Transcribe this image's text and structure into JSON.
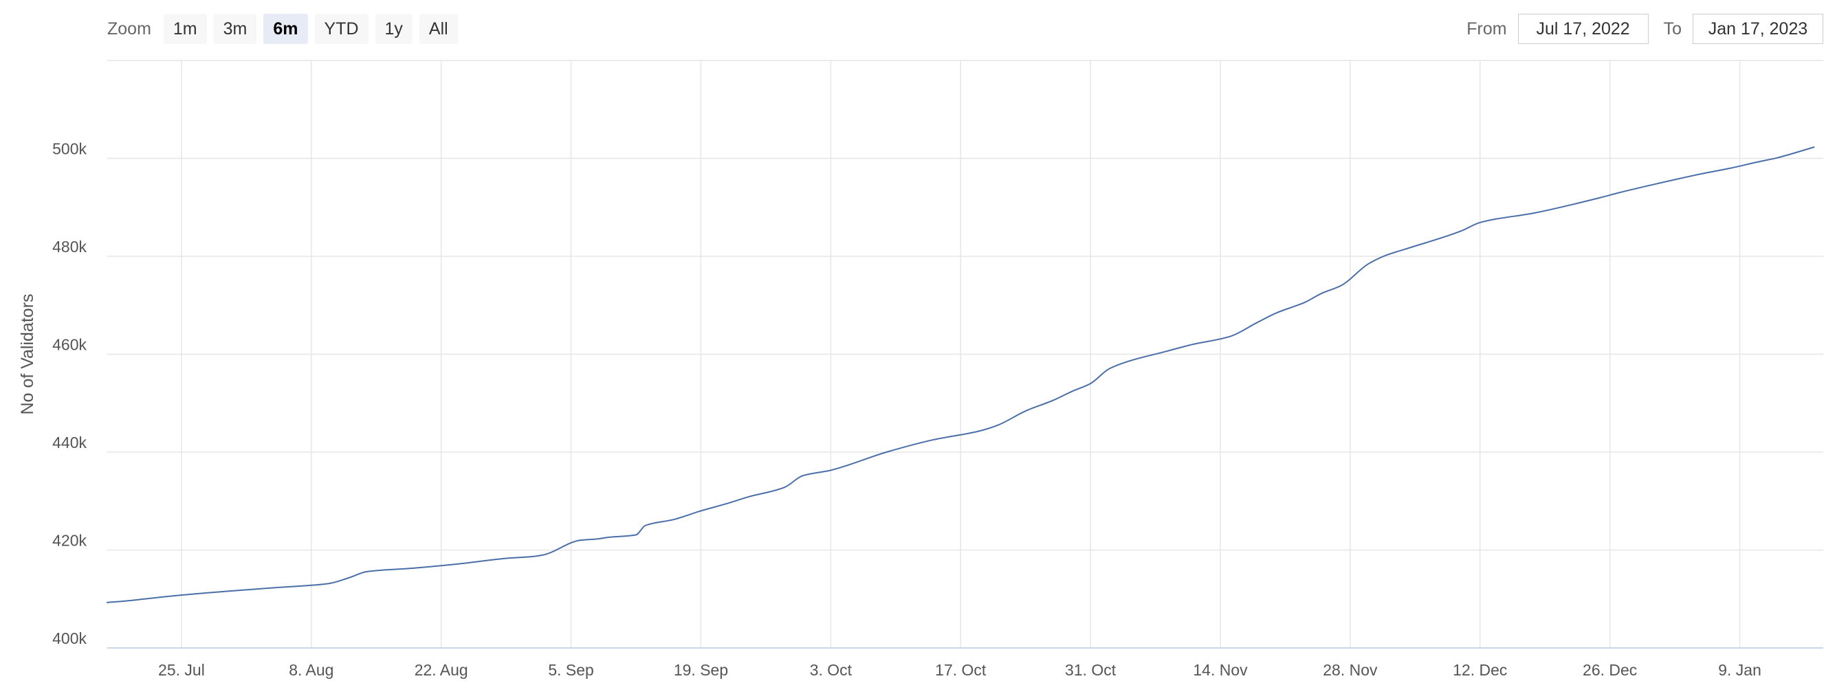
{
  "range_selector": {
    "zoom_label": "Zoom",
    "buttons": [
      "1m",
      "3m",
      "6m",
      "YTD",
      "1y",
      "All"
    ],
    "active": "6m",
    "from_label": "From",
    "from_value": "Jul 17, 2022",
    "to_label": "To",
    "to_value": "Jan 17, 2023"
  },
  "colors": {
    "series": "#4a6ea8",
    "grid": "#e6e6e6",
    "axis_line": "#ccd6eb",
    "active_button": "#e6ebf5"
  },
  "chart_data": {
    "type": "line",
    "title": "",
    "xlabel": "",
    "ylabel": "No of Validators",
    "xlim": [
      "2022-07-17",
      "2023-01-18"
    ],
    "ylim": [
      400000,
      520000
    ],
    "x_ticks": [
      {
        "date": "2022-07-25",
        "label": "25. Jul"
      },
      {
        "date": "2022-08-08",
        "label": "8. Aug"
      },
      {
        "date": "2022-08-22",
        "label": "22. Aug"
      },
      {
        "date": "2022-09-05",
        "label": "5. Sep"
      },
      {
        "date": "2022-09-19",
        "label": "19. Sep"
      },
      {
        "date": "2022-10-03",
        "label": "3. Oct"
      },
      {
        "date": "2022-10-17",
        "label": "17. Oct"
      },
      {
        "date": "2022-10-31",
        "label": "31. Oct"
      },
      {
        "date": "2022-11-14",
        "label": "14. Nov"
      },
      {
        "date": "2022-11-28",
        "label": "28. Nov"
      },
      {
        "date": "2022-12-12",
        "label": "12. Dec"
      },
      {
        "date": "2022-12-26",
        "label": "26. Dec"
      },
      {
        "date": "2023-01-09",
        "label": "9. Jan"
      }
    ],
    "y_ticks": [
      {
        "value": 400000,
        "label": "400k"
      },
      {
        "value": 420000,
        "label": "420k"
      },
      {
        "value": 440000,
        "label": "440k"
      },
      {
        "value": 460000,
        "label": "460k"
      },
      {
        "value": 480000,
        "label": "480k"
      },
      {
        "value": 500000,
        "label": "500k"
      }
    ],
    "grid": true,
    "series": [
      {
        "x": [
          "2022-07-17",
          "2022-07-19",
          "2022-07-21",
          "2022-07-25",
          "2022-07-30",
          "2022-08-04",
          "2022-08-08",
          "2022-08-10",
          "2022-08-12",
          "2022-08-14",
          "2022-08-19",
          "2022-08-24",
          "2022-08-29",
          "2022-09-01",
          "2022-09-02",
          "2022-09-06",
          "2022-09-08",
          "2022-09-09",
          "2022-09-12",
          "2022-09-13",
          "2022-09-16",
          "2022-09-19",
          "2022-09-22",
          "2022-09-24",
          "2022-09-28",
          "2022-09-30",
          "2022-10-03",
          "2022-10-09",
          "2022-10-14",
          "2022-10-19",
          "2022-10-21",
          "2022-10-24",
          "2022-10-27",
          "2022-10-29",
          "2022-10-31",
          "2022-11-02",
          "2022-11-04",
          "2022-11-08",
          "2022-11-11",
          "2022-11-15",
          "2022-11-18",
          "2022-11-20",
          "2022-11-22",
          "2022-11-23",
          "2022-11-25",
          "2022-11-27",
          "2022-11-30",
          "2022-12-02",
          "2022-12-04",
          "2022-12-10",
          "2022-12-12",
          "2022-12-18",
          "2022-12-25",
          "2022-12-27",
          "2022-12-31",
          "2023-01-05",
          "2023-01-08",
          "2023-01-11",
          "2023-01-13",
          "2023-01-17"
        ],
        "y": [
          409300,
          409600,
          410000,
          410800,
          411600,
          412300,
          412800,
          413200,
          414300,
          415600,
          416300,
          417200,
          418300,
          418700,
          419000,
          422000,
          422300,
          422600,
          423100,
          425000,
          426200,
          428000,
          429600,
          430800,
          432800,
          435200,
          436300,
          440000,
          442500,
          444300,
          445500,
          448400,
          450600,
          452400,
          454000,
          457000,
          458500,
          460500,
          462000,
          463600,
          466500,
          468400,
          469800,
          470500,
          472500,
          474000,
          478500,
          480300,
          481500,
          485200,
          486900,
          488900,
          492000,
          493000,
          494800,
          496900,
          498000,
          499300,
          500100,
          502300
        ]
      }
    ]
  }
}
